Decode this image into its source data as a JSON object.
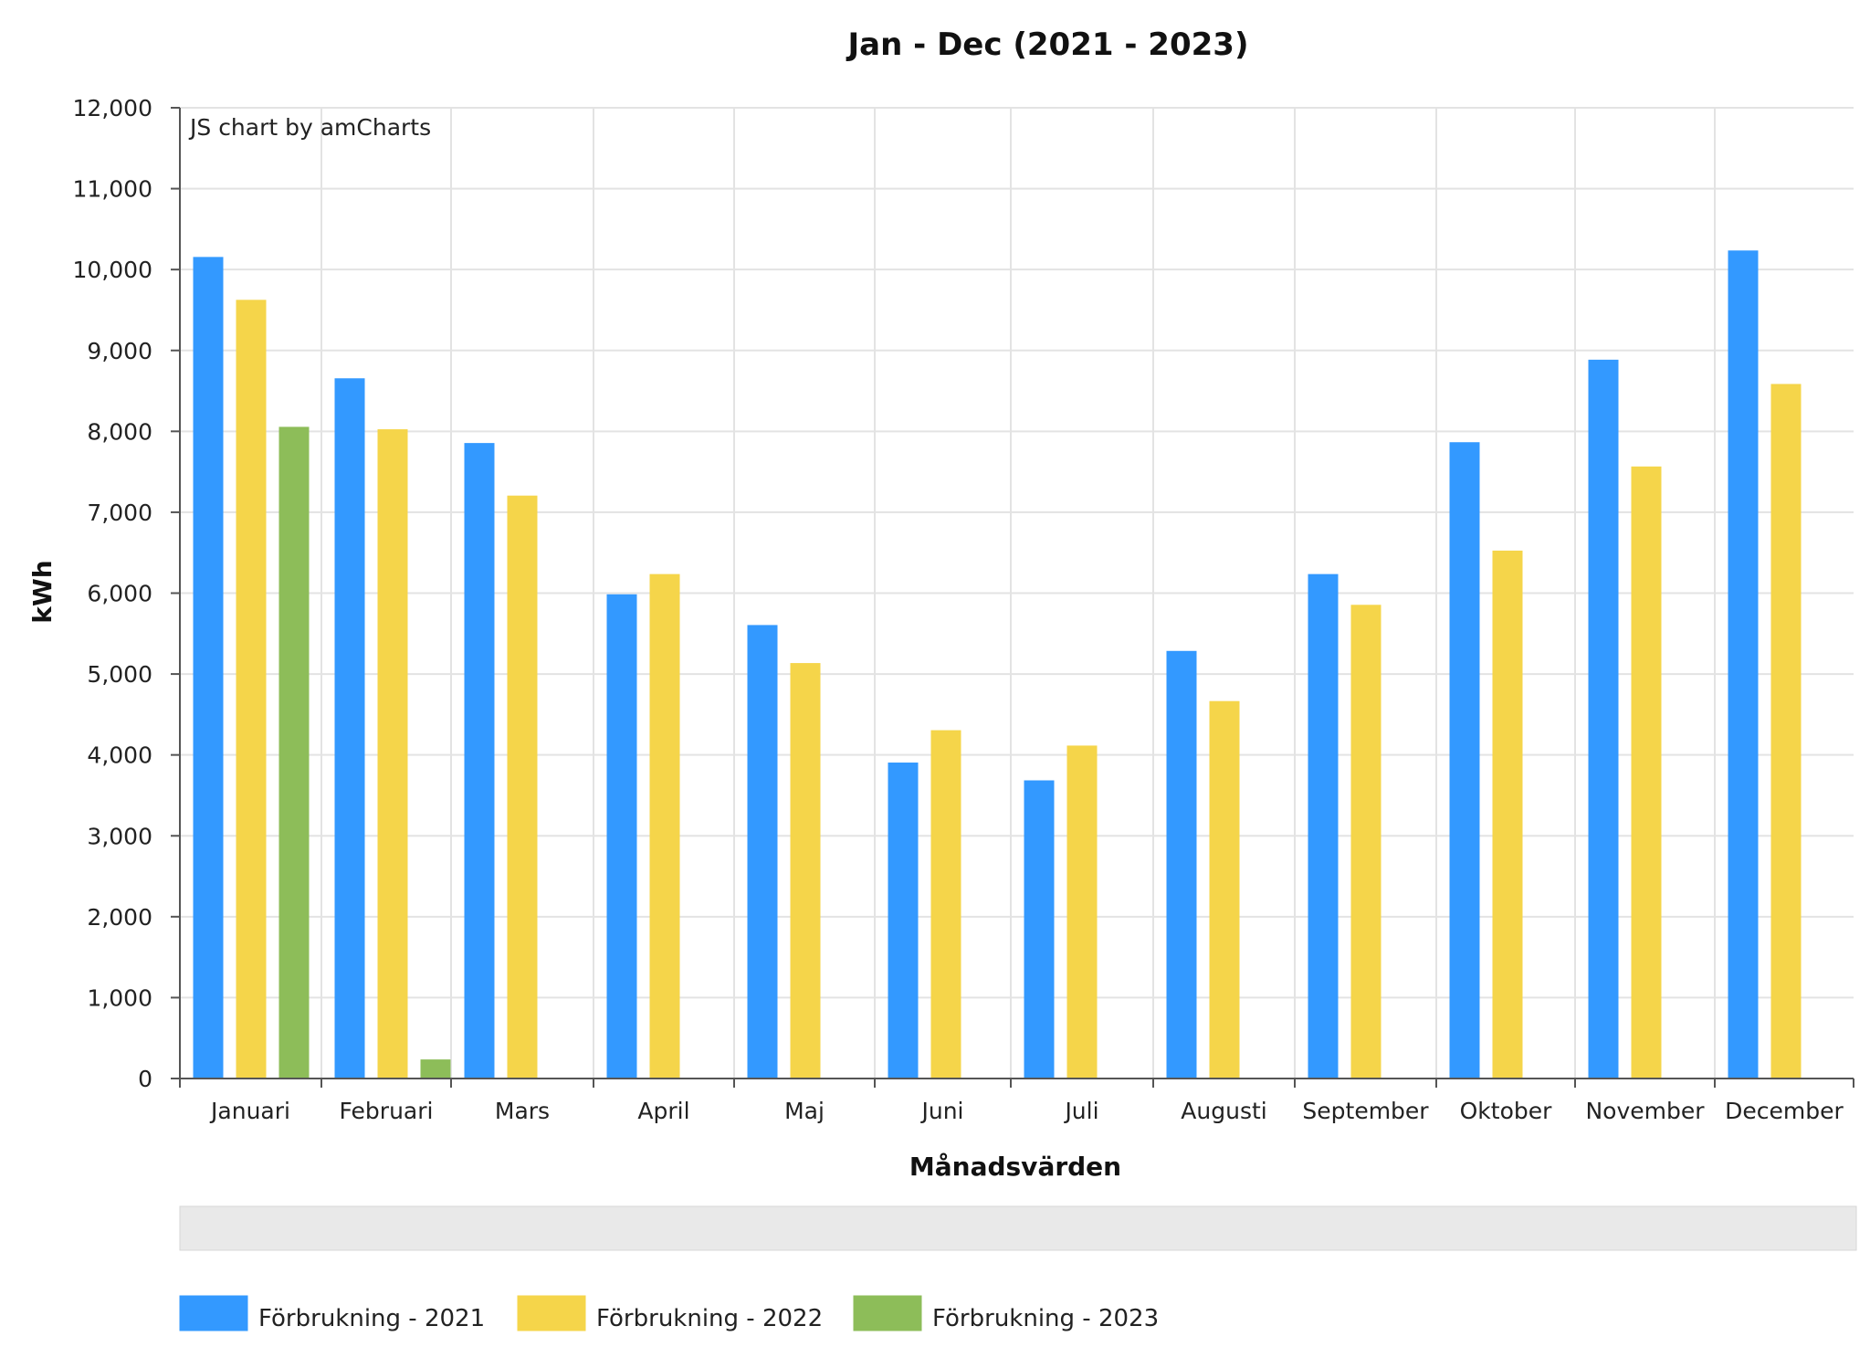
{
  "chart_data": {
    "type": "bar",
    "title": "Jan - Dec (2021 - 2023)",
    "credit": "JS chart by amCharts",
    "xlabel": "Månadsvärden",
    "ylabel": "kWh",
    "ylim": [
      0,
      12000
    ],
    "yticks": [
      "0",
      "1,000",
      "2,000",
      "3,000",
      "4,000",
      "5,000",
      "6,000",
      "7,000",
      "8,000",
      "9,000",
      "10,000",
      "11,000",
      "12,000"
    ],
    "categories": [
      "Januari",
      "Februari",
      "Mars",
      "April",
      "Maj",
      "Juni",
      "Juli",
      "Augusti",
      "September",
      "Oktober",
      "November",
      "December"
    ],
    "grid": true,
    "legend_position": "bottom-left",
    "scrollbar": true,
    "series": [
      {
        "name": "Förbrukning - 2021",
        "color": "#3399ff",
        "values": [
          10150,
          8650,
          7850,
          5980,
          5600,
          3900,
          3680,
          5280,
          6230,
          7860,
          8880,
          10230
        ]
      },
      {
        "name": "Förbrukning - 2022",
        "color": "#f5d54a",
        "values": [
          9620,
          8020,
          7200,
          6230,
          5130,
          4300,
          4110,
          4660,
          5850,
          6520,
          7560,
          8580
        ]
      },
      {
        "name": "Förbrukning - 2023",
        "color": "#8dbd59",
        "values": [
          8050,
          230,
          null,
          null,
          null,
          null,
          null,
          null,
          null,
          null,
          null,
          null
        ]
      }
    ]
  }
}
